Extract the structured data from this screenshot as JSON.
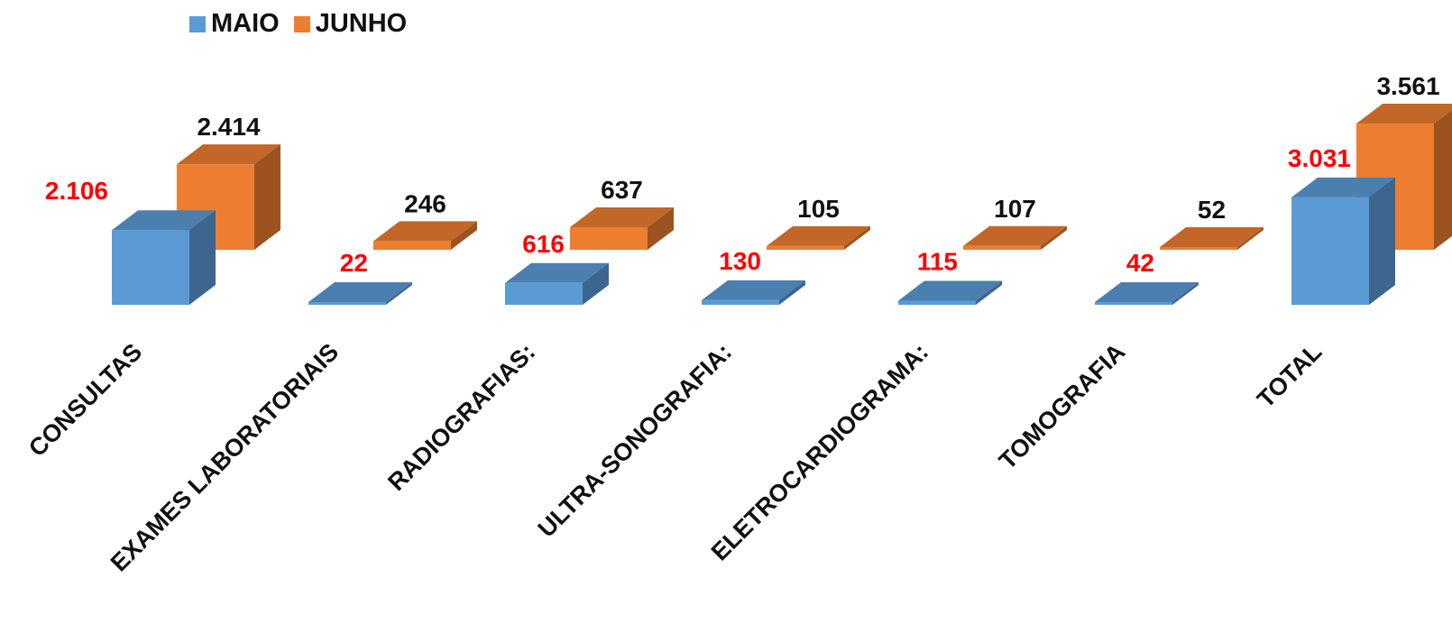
{
  "chart_data": {
    "type": "bar",
    "style": "3d-clustered-column",
    "categories": [
      "CONSULTAS",
      "EXAMES LABORATORIAIS",
      "RADIOGRAFIAS:",
      "ULTRA-SONOGRAFIA:",
      "ELETROCARDIOGRAMA:",
      "TOMOGRAFIA",
      "TOTAL"
    ],
    "series": [
      {
        "name": "MAIO",
        "color": "#5B9BD5",
        "label_color": "#FF0000",
        "values": [
          2106,
          22,
          616,
          130,
          115,
          42,
          3031
        ],
        "labels": [
          "2.106",
          "22",
          "616",
          "130",
          "115",
          "42",
          "3.031"
        ]
      },
      {
        "name": "JUNHO",
        "color": "#ED7D31",
        "label_color": "#111111",
        "values": [
          2414,
          246,
          637,
          105,
          107,
          52,
          3561
        ],
        "labels": [
          "2.414",
          "246",
          "637",
          "105",
          "107",
          "52",
          "3.561"
        ]
      }
    ],
    "legend_position": "top-left",
    "grid": false,
    "xlabel": "",
    "ylabel": ""
  }
}
